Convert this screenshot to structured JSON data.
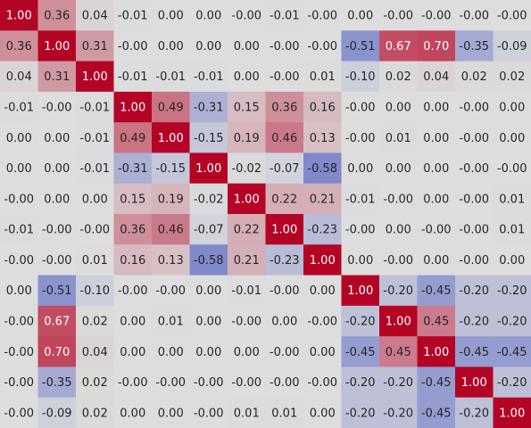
{
  "chart_data": {
    "type": "heatmap",
    "title": "",
    "xlabel": "",
    "ylabel": "",
    "value_range": [
      -1,
      1
    ],
    "colormap": "coolwarm",
    "low_color": "#3b4cc0",
    "mid_color": "#dddddd",
    "high_color": "#b40426",
    "background_color": "#dddddd",
    "matrix": [
      [
        1.0,
        0.36,
        0.04,
        -0.01,
        0.0,
        0.0,
        -0.0,
        -0.01,
        -0.0,
        0.0,
        -0.0,
        -0.0,
        -0.0,
        -0.0
      ],
      [
        0.36,
        1.0,
        0.31,
        -0.0,
        0.0,
        0.0,
        0.0,
        -0.0,
        -0.0,
        -0.51,
        0.67,
        0.7,
        -0.35,
        -0.09
      ],
      [
        0.04,
        0.31,
        1.0,
        -0.01,
        -0.01,
        -0.01,
        0.0,
        -0.0,
        0.01,
        -0.1,
        0.02,
        0.04,
        0.02,
        0.02
      ],
      [
        -0.01,
        -0.0,
        -0.01,
        1.0,
        0.49,
        -0.31,
        0.15,
        0.36,
        0.16,
        -0.0,
        0.0,
        0.0,
        -0.0,
        0.0
      ],
      [
        0.0,
        0.0,
        -0.01,
        0.49,
        1.0,
        -0.15,
        0.19,
        0.46,
        0.13,
        -0.0,
        0.01,
        0.0,
        -0.0,
        0.0
      ],
      [
        0.0,
        0.0,
        -0.01,
        -0.31,
        -0.15,
        1.0,
        -0.02,
        -0.07,
        -0.58,
        0.0,
        0.0,
        0.0,
        -0.0,
        -0.0
      ],
      [
        -0.0,
        0.0,
        0.0,
        0.15,
        0.19,
        -0.02,
        1.0,
        0.22,
        0.21,
        -0.01,
        -0.0,
        0.0,
        -0.0,
        0.01
      ],
      [
        -0.01,
        -0.0,
        -0.0,
        0.36,
        0.46,
        -0.07,
        0.22,
        1.0,
        -0.23,
        -0.0,
        0.0,
        -0.0,
        -0.0,
        0.01
      ],
      [
        -0.0,
        -0.0,
        0.01,
        0.16,
        0.13,
        -0.58,
        0.21,
        -0.23,
        1.0,
        0.0,
        -0.0,
        0.0,
        -0.0,
        0.0
      ],
      [
        0.0,
        -0.51,
        -0.1,
        -0.0,
        -0.0,
        0.0,
        -0.01,
        -0.0,
        0.0,
        1.0,
        -0.2,
        -0.45,
        -0.2,
        -0.2
      ],
      [
        -0.0,
        0.67,
        0.02,
        0.0,
        0.01,
        0.0,
        -0.0,
        0.0,
        -0.0,
        -0.2,
        1.0,
        0.45,
        -0.2,
        -0.2
      ],
      [
        -0.0,
        0.7,
        0.04,
        0.0,
        0.0,
        0.0,
        0.0,
        -0.0,
        0.0,
        -0.45,
        0.45,
        1.0,
        -0.45,
        -0.45
      ],
      [
        -0.0,
        -0.35,
        0.02,
        -0.0,
        -0.0,
        -0.0,
        -0.0,
        -0.0,
        -0.0,
        -0.2,
        -0.2,
        -0.45,
        1.0,
        -0.2
      ],
      [
        -0.0,
        -0.09,
        0.02,
        0.0,
        0.0,
        -0.0,
        0.01,
        0.01,
        0.0,
        -0.2,
        -0.2,
        -0.45,
        -0.2,
        1.0
      ]
    ],
    "labels": [
      [
        "1.00",
        "0.36",
        "0.04",
        "-0.01",
        "0.00",
        "0.00",
        "-0.00",
        "-0.01",
        "-0.00",
        "0.00",
        "-0.00",
        "-0.00",
        "-0.00",
        "-0.00"
      ],
      [
        "0.36",
        "1.00",
        "0.31",
        "-0.00",
        "0.00",
        "0.00",
        "0.00",
        "-0.00",
        "-0.00",
        "-0.51",
        "0.67",
        "0.70",
        "-0.35",
        "-0.09"
      ],
      [
        "0.04",
        "0.31",
        "1.00",
        "-0.01",
        "-0.01",
        "-0.01",
        "0.00",
        "-0.00",
        "0.01",
        "-0.10",
        "0.02",
        "0.04",
        "0.02",
        "0.02"
      ],
      [
        "-0.01",
        "-0.00",
        "-0.01",
        "1.00",
        "0.49",
        "-0.31",
        "0.15",
        "0.36",
        "0.16",
        "-0.00",
        "0.00",
        "0.00",
        "-0.00",
        "0.00"
      ],
      [
        "0.00",
        "0.00",
        "-0.01",
        "0.49",
        "1.00",
        "-0.15",
        "0.19",
        "0.46",
        "0.13",
        "-0.00",
        "0.01",
        "0.00",
        "-0.00",
        "0.00"
      ],
      [
        "0.00",
        "0.00",
        "-0.01",
        "-0.31",
        "-0.15",
        "1.00",
        "-0.02",
        "-0.07",
        "-0.58",
        "0.00",
        "0.00",
        "0.00",
        "-0.00",
        "-0.00"
      ],
      [
        "-0.00",
        "0.00",
        "0.00",
        "0.15",
        "0.19",
        "-0.02",
        "1.00",
        "0.22",
        "0.21",
        "-0.01",
        "-0.00",
        "0.00",
        "-0.00",
        "0.01"
      ],
      [
        "-0.01",
        "-0.00",
        "-0.00",
        "0.36",
        "0.46",
        "-0.07",
        "0.22",
        "1.00",
        "-0.23",
        "-0.00",
        "0.00",
        "-0.00",
        "-0.00",
        "0.01"
      ],
      [
        "-0.00",
        "-0.00",
        "0.01",
        "0.16",
        "0.13",
        "-0.58",
        "0.21",
        "-0.23",
        "1.00",
        "0.00",
        "-0.00",
        "0.00",
        "-0.00",
        "0.00"
      ],
      [
        "0.00",
        "-0.51",
        "-0.10",
        "-0.00",
        "-0.00",
        "0.00",
        "-0.01",
        "-0.00",
        "0.00",
        "1.00",
        "-0.20",
        "-0.45",
        "-0.20",
        "-0.20"
      ],
      [
        "-0.00",
        "0.67",
        "0.02",
        "0.00",
        "0.01",
        "0.00",
        "-0.00",
        "0.00",
        "-0.00",
        "-0.20",
        "1.00",
        "0.45",
        "-0.20",
        "-0.20"
      ],
      [
        "-0.00",
        "0.70",
        "0.04",
        "0.00",
        "0.00",
        "0.00",
        "0.00",
        "-0.00",
        "0.00",
        "-0.45",
        "0.45",
        "1.00",
        "-0.45",
        "-0.45"
      ],
      [
        "-0.00",
        "-0.35",
        "0.02",
        "-0.00",
        "-0.00",
        "-0.00",
        "-0.00",
        "-0.00",
        "-0.00",
        "-0.20",
        "-0.20",
        "-0.45",
        "1.00",
        "-0.20"
      ],
      [
        "-0.00",
        "-0.09",
        "0.02",
        "0.00",
        "0.00",
        "-0.00",
        "0.01",
        "0.01",
        "0.00",
        "-0.20",
        "-0.20",
        "-0.45",
        "-0.20",
        "1.00"
      ]
    ]
  }
}
